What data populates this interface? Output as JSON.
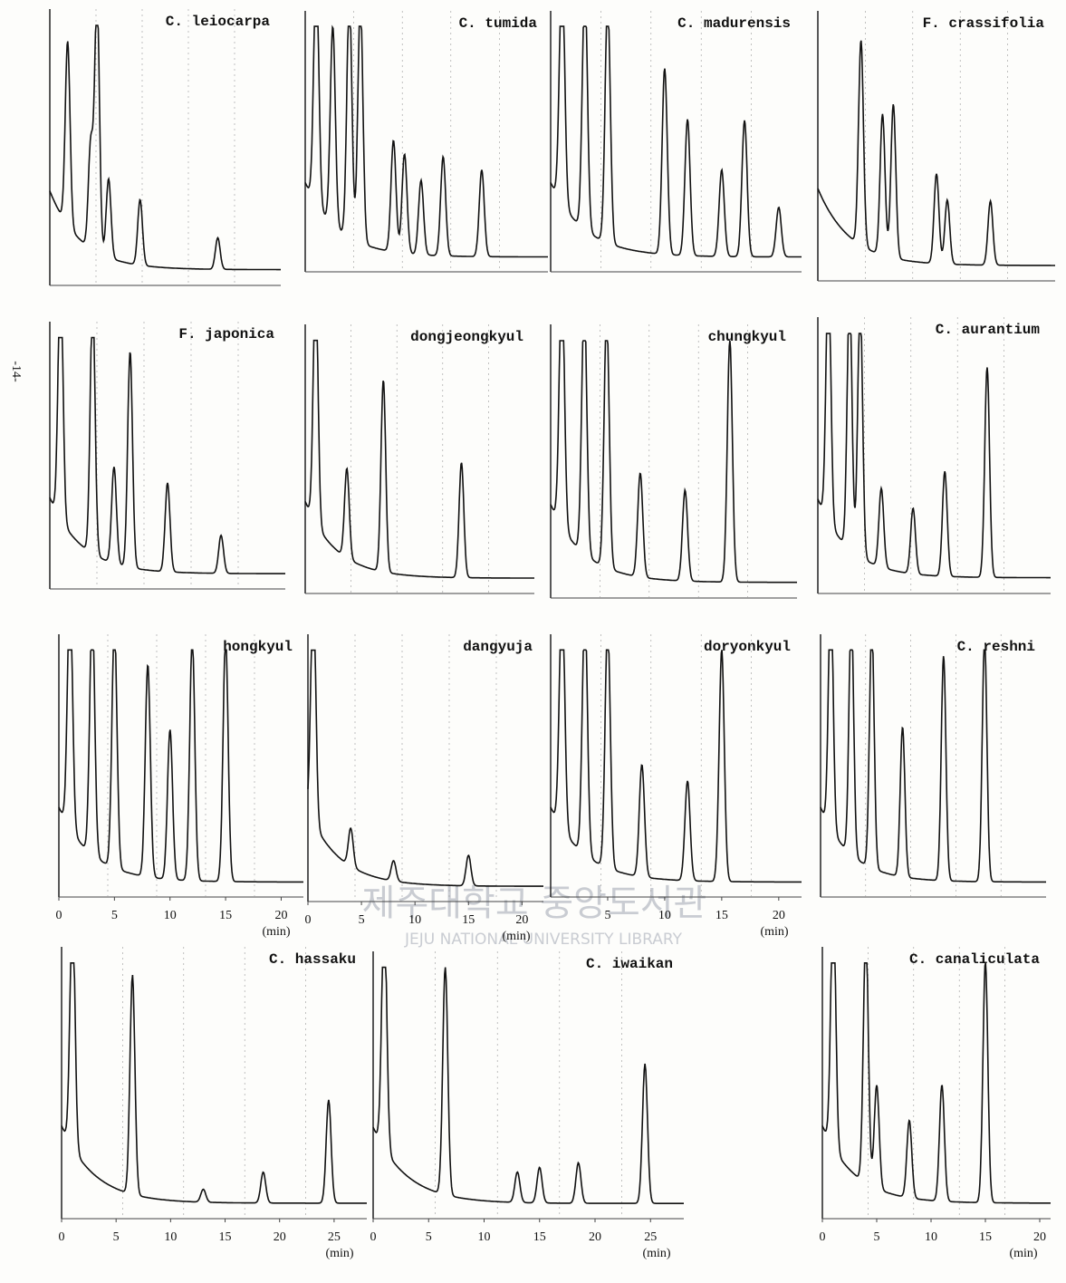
{
  "page_number": "-14-",
  "watermark": {
    "korean": "제주대학교 중앙도서관",
    "english": "JEJU NATIONAL UNIVERSITY LIBRARY"
  },
  "panels": [
    {
      "title": "C. leiocarpa",
      "xlim": [
        0,
        22
      ],
      "peaks": [
        [
          1.7,
          70
        ],
        [
          3.9,
          40
        ],
        [
          4.5,
          98
        ],
        [
          5.6,
          30
        ],
        [
          8.6,
          25
        ],
        [
          16,
          12
        ]
      ]
    },
    {
      "title": "C. tumida",
      "xlim": [
        0,
        22
      ],
      "peaks": [
        [
          1,
          98
        ],
        [
          2.5,
          80
        ],
        [
          4,
          98
        ],
        [
          5,
          98
        ],
        [
          8,
          45
        ],
        [
          9,
          40
        ],
        [
          10.5,
          30
        ],
        [
          12.5,
          40
        ],
        [
          16,
          35
        ]
      ]
    },
    {
      "title": "C. madurensis",
      "xlim": [
        0,
        22
      ],
      "peaks": [
        [
          1,
          98
        ],
        [
          3,
          98
        ],
        [
          5,
          98
        ],
        [
          10,
          75
        ],
        [
          12,
          55
        ],
        [
          15,
          35
        ],
        [
          17,
          55
        ],
        [
          20,
          20
        ]
      ]
    },
    {
      "title": "F. crassifolia",
      "xlim": [
        0,
        22
      ],
      "peaks": [
        [
          4,
          80
        ],
        [
          6,
          55
        ],
        [
          7,
          60
        ],
        [
          11,
          35
        ],
        [
          12,
          25
        ],
        [
          16,
          25
        ]
      ]
    },
    {
      "title": "F. japonica",
      "xlim": [
        0,
        22
      ],
      "peaks": [
        [
          1,
          98
        ],
        [
          4,
          100
        ],
        [
          6,
          38
        ],
        [
          7.5,
          85
        ],
        [
          11,
          35
        ],
        [
          16,
          15
        ]
      ]
    },
    {
      "title": "dongjeongkyul",
      "xlim": [
        0,
        22
      ],
      "peaks": [
        [
          1,
          98
        ],
        [
          4,
          35
        ],
        [
          7.5,
          75
        ],
        [
          15,
          45
        ]
      ]
    },
    {
      "title": "chungkyul",
      "xlim": [
        0,
        22
      ],
      "peaks": [
        [
          1,
          98
        ],
        [
          3,
          98
        ],
        [
          5,
          98
        ],
        [
          8,
          40
        ],
        [
          12,
          35
        ],
        [
          16,
          93
        ]
      ]
    },
    {
      "title": "C. aurantium",
      "xlim": [
        0,
        22
      ],
      "peaks": [
        [
          1,
          98
        ],
        [
          3,
          98
        ],
        [
          4,
          98
        ],
        [
          6,
          30
        ],
        [
          9,
          25
        ],
        [
          12,
          40
        ],
        [
          16,
          80
        ]
      ]
    },
    {
      "title": "hongkyul",
      "xlim": [
        0,
        22
      ],
      "peaks": [
        [
          1,
          98
        ],
        [
          3,
          98
        ],
        [
          5,
          98
        ],
        [
          8,
          85
        ],
        [
          10,
          60
        ],
        [
          12,
          98
        ],
        [
          15,
          98
        ]
      ],
      "ticks": [
        0,
        5,
        10,
        15,
        20
      ],
      "unit": "(min)"
    },
    {
      "title": "dangyuja",
      "xlim": [
        0,
        22
      ],
      "peaks": [
        [
          0.5,
          95
        ],
        [
          4,
          15
        ],
        [
          8,
          8
        ],
        [
          15,
          12
        ]
      ],
      "ticks": [
        0,
        5,
        10,
        15,
        20
      ],
      "unit": "(min)"
    },
    {
      "title": "doryonkyul",
      "xlim": [
        0,
        22
      ],
      "peaks": [
        [
          1,
          98
        ],
        [
          3,
          98
        ],
        [
          5,
          98
        ],
        [
          8,
          45
        ],
        [
          12,
          40
        ],
        [
          15,
          93
        ]
      ],
      "ticks": [
        5,
        10,
        15,
        20
      ],
      "unit": "(min)"
    },
    {
      "title": "C. reshni",
      "xlim": [
        0,
        22
      ],
      "peaks": [
        [
          1,
          98
        ],
        [
          3,
          98
        ],
        [
          5,
          98
        ],
        [
          8,
          60
        ],
        [
          12,
          90
        ],
        [
          16,
          98
        ]
      ]
    },
    {
      "title": "C. hassaku",
      "xlim": [
        0,
        28
      ],
      "peaks": [
        [
          1,
          95
        ],
        [
          6.5,
          85
        ],
        [
          13,
          5
        ],
        [
          18.5,
          12
        ],
        [
          24.5,
          40
        ]
      ],
      "ticks": [
        0,
        5,
        10,
        15,
        20,
        25
      ],
      "unit": "(min)"
    },
    {
      "title": "C. iwaikan",
      "xlim": [
        0,
        28
      ],
      "peaks": [
        [
          1,
          95
        ],
        [
          6.5,
          90
        ],
        [
          13,
          12
        ],
        [
          15,
          14
        ],
        [
          18.5,
          16
        ],
        [
          24.5,
          55
        ]
      ],
      "ticks": [
        0,
        5,
        10,
        15,
        20,
        25
      ],
      "unit": "(min)"
    },
    {
      "title": "C. canaliculata",
      "xlim": [
        0,
        21
      ],
      "peaks": [
        [
          1,
          98
        ],
        [
          4,
          98
        ],
        [
          5,
          40
        ],
        [
          8,
          30
        ],
        [
          11,
          45
        ],
        [
          15,
          93
        ]
      ],
      "ticks": [
        0,
        5,
        10,
        15,
        20
      ],
      "unit": "(min)"
    }
  ]
}
